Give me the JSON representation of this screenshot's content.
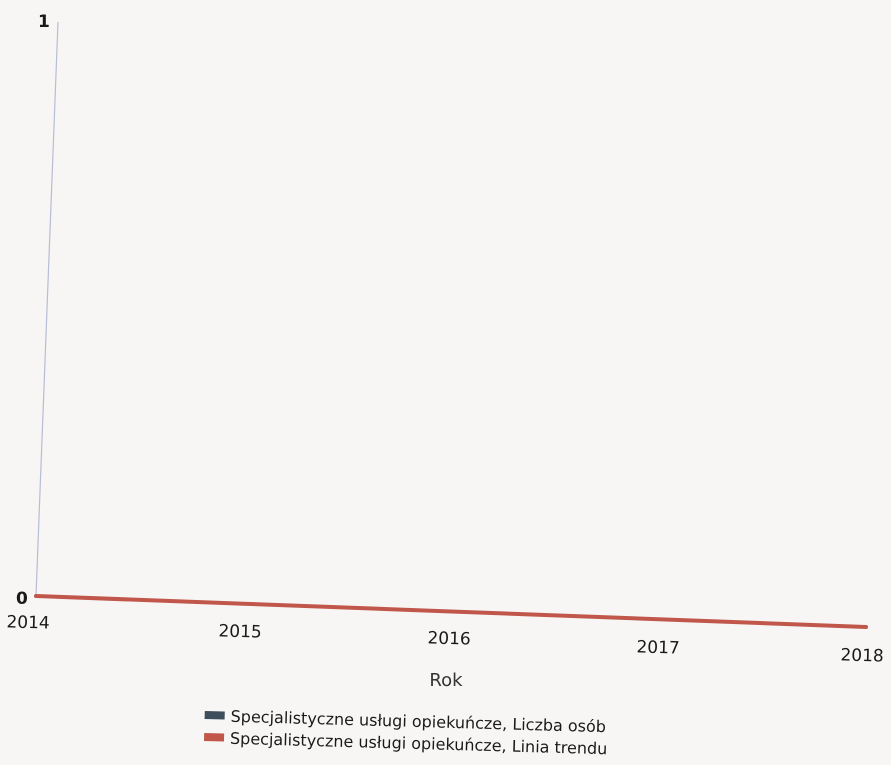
{
  "chart_data": {
    "type": "line",
    "x": [
      "2014",
      "2015",
      "2016",
      "2017",
      "2018"
    ],
    "series": [
      {
        "name": "Specjalistyczne usługi opiekuńcze, Liczba osób",
        "values": [
          0,
          0,
          0,
          0,
          0
        ],
        "color": "#3d4f5c"
      },
      {
        "name": "Specjalistyczne usługi opiekuńcze, Linia trendu",
        "values": [
          0,
          0,
          0,
          0,
          0
        ],
        "color": "#c0574a"
      }
    ],
    "xlabel": "Rok",
    "ylabel": "",
    "ylim": [
      0,
      1
    ],
    "y_ticks": [
      "0",
      "1"
    ],
    "grid": false,
    "legend_position": "bottom"
  },
  "colors": {
    "axis_line": "#b8bcd6"
  }
}
